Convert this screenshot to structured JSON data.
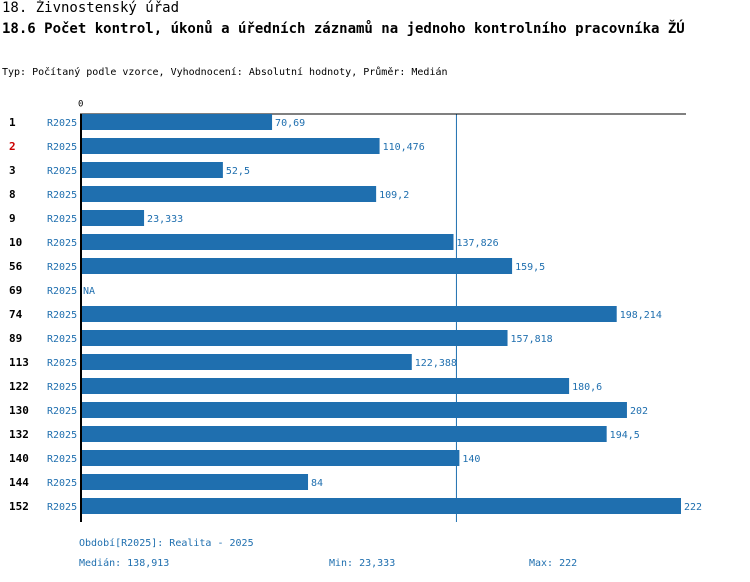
{
  "header": {
    "title": "18. Živnostenský úřad",
    "subtitle": "18.6 Počet kontrol, úkonů a úředních záznamů na jednoho kontrolního pracovníka ŽÚ",
    "description": "Typ: Počítaný podle vzorce, Vyhodnocení: Absolutní hodnoty, Průměr: Medián"
  },
  "chart_data": {
    "type": "bar",
    "orientation": "horizontal",
    "title": "18.6 Počet kontrol, úkonů a úředních záznamů na jednoho kontrolního pracovníka ŽÚ",
    "axis_zero_label": "0",
    "xlim": [
      0,
      222
    ],
    "series_label": "R2025",
    "rows": [
      {
        "id": "1",
        "series": "R2025",
        "value": 70.69,
        "label": "70,69",
        "highlight": false
      },
      {
        "id": "2",
        "series": "R2025",
        "value": 110.476,
        "label": "110,476",
        "highlight": true
      },
      {
        "id": "3",
        "series": "R2025",
        "value": 52.5,
        "label": "52,5",
        "highlight": false
      },
      {
        "id": "8",
        "series": "R2025",
        "value": 109.2,
        "label": "109,2",
        "highlight": false
      },
      {
        "id": "9",
        "series": "R2025",
        "value": 23.333,
        "label": "23,333",
        "highlight": false
      },
      {
        "id": "10",
        "series": "R2025",
        "value": 137.826,
        "label": "137,826",
        "highlight": false
      },
      {
        "id": "56",
        "series": "R2025",
        "value": 159.5,
        "label": "159,5",
        "highlight": false
      },
      {
        "id": "69",
        "series": "R2025",
        "value": null,
        "label": "NA",
        "highlight": false
      },
      {
        "id": "74",
        "series": "R2025",
        "value": 198.214,
        "label": "198,214",
        "highlight": false
      },
      {
        "id": "89",
        "series": "R2025",
        "value": 157.818,
        "label": "157,818",
        "highlight": false
      },
      {
        "id": "113",
        "series": "R2025",
        "value": 122.388,
        "label": "122,388",
        "highlight": false
      },
      {
        "id": "122",
        "series": "R2025",
        "value": 180.6,
        "label": "180,6",
        "highlight": false
      },
      {
        "id": "130",
        "series": "R2025",
        "value": 202,
        "label": "202",
        "highlight": false
      },
      {
        "id": "132",
        "series": "R2025",
        "value": 194.5,
        "label": "194,5",
        "highlight": false
      },
      {
        "id": "140",
        "series": "R2025",
        "value": 140,
        "label": "140",
        "highlight": false
      },
      {
        "id": "144",
        "series": "R2025",
        "value": 84,
        "label": "84",
        "highlight": false
      },
      {
        "id": "152",
        "series": "R2025",
        "value": 222,
        "label": "222",
        "highlight": false
      }
    ],
    "median_value": 138.913,
    "colors": {
      "bar": "#1f6faf",
      "median_line": "#1f6faf",
      "label": "#1f6faf",
      "highlight_id": "#cc0000",
      "id": "#000000"
    }
  },
  "footer": {
    "period": "Období[R2025]: Realita - 2025",
    "median": "Medián: 138,913",
    "min": "Min: 23,333",
    "max": "Max: 222"
  }
}
